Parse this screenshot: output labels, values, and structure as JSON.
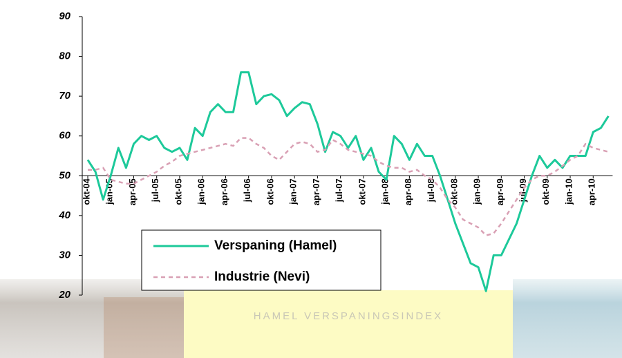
{
  "chart_data": {
    "type": "line",
    "banner": "HAMEL VERSPANINGSINDEX",
    "categories": [
      "okt-04",
      null,
      null,
      "jan-05",
      null,
      null,
      "apr-05",
      null,
      null,
      "jul-05",
      null,
      null,
      "okt-05",
      null,
      null,
      "jan-06",
      null,
      null,
      "apr-06",
      null,
      null,
      "jul-06",
      null,
      null,
      "okt-06",
      null,
      null,
      "jan-07",
      null,
      null,
      "apr-07",
      null,
      null,
      "jul-07",
      null,
      null,
      "okt-07",
      null,
      null,
      "jan-08",
      null,
      null,
      "apr-08",
      null,
      null,
      "jul-08",
      null,
      null,
      "okt-08",
      null,
      null,
      "jan-09",
      null,
      null,
      "apr-09",
      null,
      null,
      "jul-09",
      null,
      null,
      "okt-09",
      null,
      null,
      "jan-10",
      null,
      null,
      "apr-10",
      null,
      null
    ],
    "series": [
      {
        "name": "Verspaning (Hamel)",
        "color": "#1dc99a",
        "dashed": false,
        "values": [
          54,
          51,
          44,
          50,
          57,
          52,
          58,
          60,
          59,
          60,
          57,
          56,
          57,
          54,
          62,
          60,
          66,
          68,
          66,
          66,
          76,
          76,
          68,
          70,
          70.5,
          69,
          65,
          67,
          68.5,
          68,
          63,
          56,
          61,
          60,
          57,
          60,
          54,
          57,
          51,
          49,
          60,
          58,
          54,
          58,
          55,
          55,
          50,
          44,
          38,
          33,
          28,
          27,
          21,
          30,
          30,
          34,
          38,
          44,
          50,
          55,
          52,
          54,
          52,
          55,
          55,
          55,
          61,
          62,
          65
        ]
      },
      {
        "name": "Industrie (Nevi)",
        "color": "#d9a0b4",
        "dashed": true,
        "values": [
          51.5,
          51.5,
          52,
          49,
          48.5,
          48,
          48,
          49,
          50,
          51,
          52.5,
          53.5,
          55,
          55.5,
          56,
          56.5,
          57,
          57.5,
          58,
          57.5,
          59.5,
          59.5,
          58,
          57,
          55,
          54,
          56,
          58,
          58.5,
          58,
          56,
          56.5,
          59,
          58,
          56.5,
          56,
          55.5,
          55,
          53.5,
          52.5,
          52,
          52,
          51,
          51.5,
          50,
          49,
          47,
          44,
          42,
          39,
          38,
          37,
          35,
          35.5,
          38,
          41,
          44,
          47,
          49,
          50,
          50,
          51,
          52.5,
          54,
          55,
          58,
          57,
          56.5,
          56
        ]
      }
    ],
    "ylim": [
      20,
      90
    ],
    "yticks": [
      20,
      30,
      40,
      50,
      60,
      70,
      80,
      90
    ],
    "x_axis_crosses": 50
  }
}
